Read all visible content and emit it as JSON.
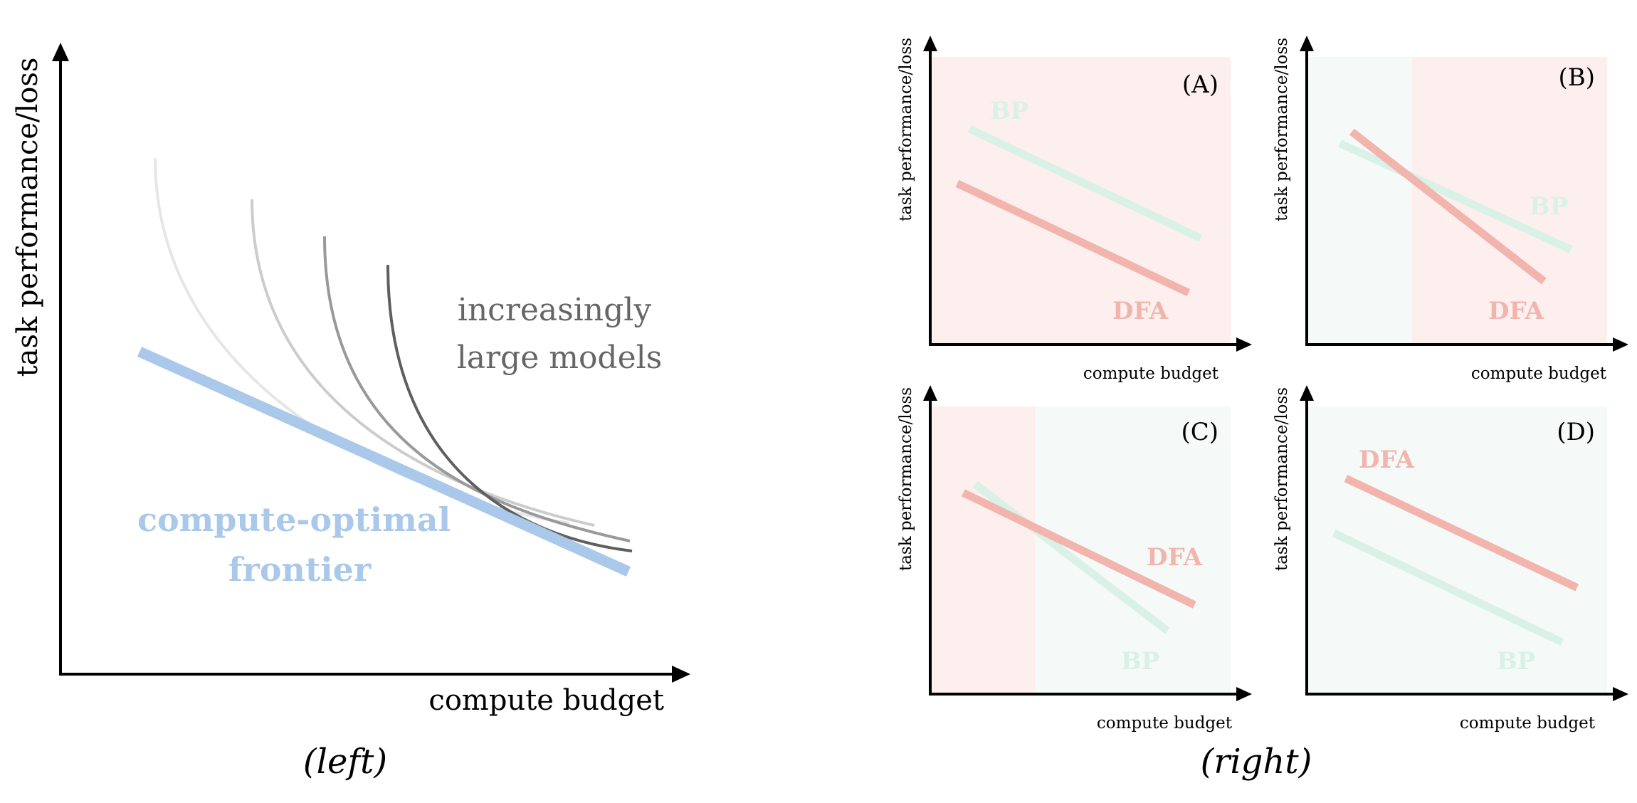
{
  "colors": {
    "axis": "#000000",
    "frontier": "#aac8ea",
    "dfa": "#f2b5ae",
    "bp": "#d9f1e6",
    "region_dfa": "#fdefee",
    "region_bp": "#f5faf8",
    "curves": [
      "#e6e6e6",
      "#cccccc",
      "#999999",
      "#5f5f5f"
    ],
    "label_gray": "#666666"
  },
  "left": {
    "ylabel": "task performance/loss",
    "xlabel": "compute budget",
    "caption": "(left)",
    "models_label": [
      "increasingly",
      "large models"
    ],
    "frontier_label": [
      "compute-optimal",
      "frontier"
    ],
    "curve_count": 4
  },
  "right": {
    "caption": "(right)",
    "panels": [
      {
        "id": "A",
        "tag": "(A)",
        "xlabel": "compute budget",
        "ylabel": "task performance/loss",
        "regions": [
          {
            "from": 0.0,
            "to": 1.0,
            "color": "dfa"
          }
        ],
        "lines": [
          {
            "name": "BP",
            "start": [
              0.13,
              0.75
            ],
            "end": [
              0.9,
              0.37
            ]
          },
          {
            "name": "DFA",
            "start": [
              0.09,
              0.56
            ],
            "end": [
              0.86,
              0.18
            ]
          }
        ]
      },
      {
        "id": "B",
        "tag": "(B)",
        "xlabel": "compute budget",
        "ylabel": "task performance/loss",
        "regions": [
          {
            "from": 0.0,
            "to": 0.35,
            "color": "bp"
          },
          {
            "from": 0.35,
            "to": 1.0,
            "color": "dfa"
          }
        ],
        "lines": [
          {
            "name": "BP",
            "start": [
              0.11,
              0.7
            ],
            "end": [
              0.88,
              0.33
            ]
          },
          {
            "name": "DFA",
            "start": [
              0.15,
              0.74
            ],
            "end": [
              0.79,
              0.22
            ]
          }
        ]
      },
      {
        "id": "C",
        "tag": "(C)",
        "xlabel": "compute budget",
        "ylabel": "task performance/loss",
        "regions": [
          {
            "from": 0.0,
            "to": 0.35,
            "color": "dfa"
          },
          {
            "from": 0.35,
            "to": 1.0,
            "color": "bp"
          }
        ],
        "lines": [
          {
            "name": "BP",
            "start": [
              0.15,
              0.73
            ],
            "end": [
              0.79,
              0.22
            ]
          },
          {
            "name": "DFA",
            "start": [
              0.11,
              0.7
            ],
            "end": [
              0.88,
              0.31
            ]
          }
        ]
      },
      {
        "id": "D",
        "tag": "(D)",
        "xlabel": "compute budget",
        "ylabel": "task performance/loss",
        "regions": [
          {
            "from": 0.0,
            "to": 1.0,
            "color": "bp"
          }
        ],
        "lines": [
          {
            "name": "BP",
            "start": [
              0.09,
              0.56
            ],
            "end": [
              0.85,
              0.18
            ]
          },
          {
            "name": "DFA",
            "start": [
              0.13,
              0.75
            ],
            "end": [
              0.9,
              0.37
            ]
          }
        ]
      }
    ]
  }
}
